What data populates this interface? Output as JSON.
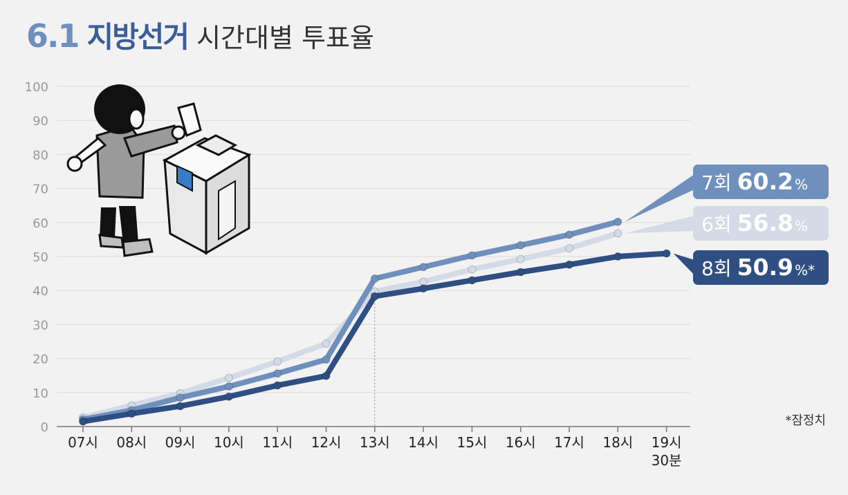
{
  "header": {
    "title_number": "6.1",
    "title_bold": "지방선거",
    "title_rest": "시간대별 투표율"
  },
  "footnote": "*잠정치",
  "chart_data": {
    "type": "line",
    "title": "6.1 지방선거 시간대별 투표율",
    "xlabel": "",
    "ylabel": "",
    "ylim": [
      0,
      100
    ],
    "yticks": [
      0,
      10,
      20,
      30,
      40,
      50,
      60,
      70,
      80,
      90,
      100
    ],
    "grid": true,
    "categories": [
      "07시",
      "08시",
      "09시",
      "10시",
      "11시",
      "12시",
      "13시",
      "14시",
      "15시",
      "16시",
      "17시",
      "18시",
      "19시 30분"
    ],
    "series": [
      {
        "name": "6회",
        "color": "#d4dae6",
        "values": [
          2.7,
          6.2,
          9.8,
          14.3,
          19.1,
          24.4,
          39.7,
          42.6,
          46.2,
          49.2,
          52.4,
          56.8,
          null
        ],
        "label_round": "6회",
        "label_value": "56.8",
        "label_unit": "%"
      },
      {
        "name": "7회",
        "color": "#6f8fbd",
        "values": [
          2.1,
          4.8,
          8.5,
          11.8,
          15.6,
          19.7,
          43.5,
          46.9,
          50.3,
          53.3,
          56.4,
          60.2,
          null
        ],
        "label_round": "7회",
        "label_value": "60.2",
        "label_unit": "%"
      },
      {
        "name": "8회",
        "color": "#2f4f82",
        "values": [
          1.5,
          3.8,
          6.0,
          8.8,
          12.1,
          14.9,
          38.3,
          40.6,
          43.0,
          45.4,
          47.6,
          50.0,
          50.9
        ],
        "label_round": "8회",
        "label_value": "50.9",
        "label_unit": "%*"
      }
    ],
    "annotations": [
      "*잠정치"
    ]
  }
}
